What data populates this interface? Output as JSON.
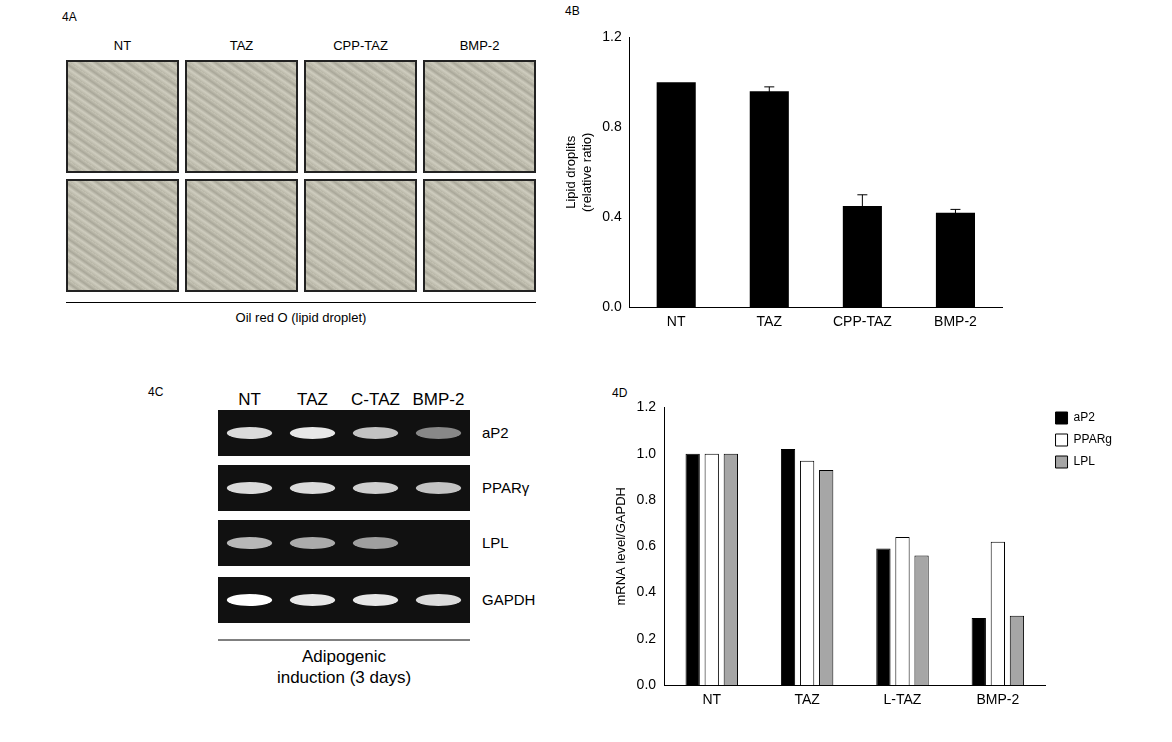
{
  "chart_data": [
    {
      "type": "bar",
      "panel_label": "4B",
      "categories": [
        "NT",
        "TAZ",
        "CPP-TAZ",
        "BMP-2"
      ],
      "values": [
        1.0,
        0.96,
        0.45,
        0.42
      ],
      "errors": [
        0,
        0.02,
        0.05,
        0.015
      ],
      "color": "#000000",
      "y_label": [
        "Lipid droplits",
        "(relative ratio)"
      ],
      "ylim": [
        0,
        1.2
      ],
      "yticks": [
        {
          "value": 0,
          "label": "0.0"
        },
        {
          "value": 0.4,
          "label": "0.4"
        },
        {
          "value": 0.8,
          "label": "0.8"
        },
        {
          "value": 1.2,
          "label": "1.2"
        }
      ],
      "grid": false
    },
    {
      "type": "bar",
      "panel_label": "4D",
      "categories": [
        "NT",
        "TAZ",
        "L-TAZ",
        "BMP-2"
      ],
      "series": [
        {
          "name": "aP2",
          "color": "#000000",
          "values": [
            1.0,
            1.02,
            0.59,
            0.29
          ]
        },
        {
          "name": "PPARg",
          "color": "#ffffff",
          "values": [
            1.0,
            0.97,
            0.64,
            0.62
          ]
        },
        {
          "name": "LPL",
          "color": "#a6a6a6",
          "values": [
            1.0,
            0.93,
            0.56,
            0.3
          ]
        }
      ],
      "y_label": "mRNA level/GAPDH",
      "ylim": [
        0,
        1.2
      ],
      "yticks": [
        {
          "value": 0,
          "label": "0.0"
        },
        {
          "value": 0.2,
          "label": "0.2"
        },
        {
          "value": 0.4,
          "label": "0.4"
        },
        {
          "value": 0.6,
          "label": "0.6"
        },
        {
          "value": 0.8,
          "label": "0.8"
        },
        {
          "value": 1.0,
          "label": "1.0"
        },
        {
          "value": 1.2,
          "label": "1.2"
        }
      ],
      "grid": false,
      "legend": "upper right"
    }
  ],
  "figure": {
    "panel_a": {
      "label": "4A",
      "columns": [
        "NT",
        "TAZ",
        "CPP-TAZ",
        "BMP-2"
      ],
      "rows": 2,
      "caption": "Oil red O (lipid droplet)"
    },
    "panel_c": {
      "label": "4C",
      "lanes": [
        "NT",
        "TAZ",
        "C-TAZ",
        "BMP-2"
      ],
      "genes": [
        "aP2",
        "PPARγ",
        "LPL",
        "GAPDH"
      ],
      "band_intensity": [
        [
          0.85,
          0.9,
          0.75,
          0.5
        ],
        [
          0.85,
          0.85,
          0.8,
          0.75
        ],
        [
          0.7,
          0.65,
          0.6,
          0
        ],
        [
          1.0,
          0.9,
          0.9,
          0.85
        ]
      ],
      "caption": [
        "Adipogenic",
        "induction (3 days)"
      ]
    }
  }
}
